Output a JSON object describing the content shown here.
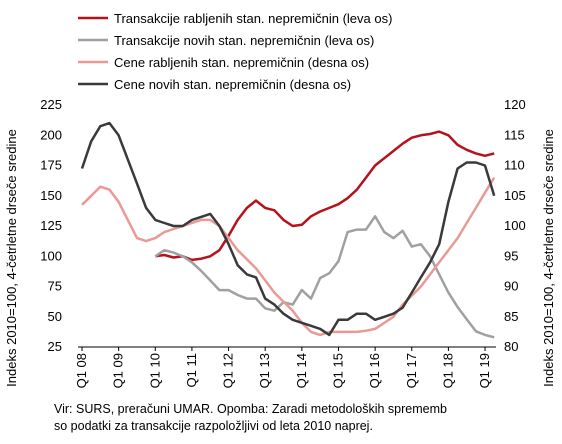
{
  "chart_data": {
    "type": "line",
    "categories": [
      "Q1 08",
      null,
      null,
      null,
      "Q1 09",
      null,
      null,
      null,
      "Q1 10",
      null,
      null,
      null,
      "Q1 11",
      null,
      null,
      null,
      "Q1 12",
      null,
      null,
      null,
      "Q1 13",
      null,
      null,
      null,
      "Q1 14",
      null,
      null,
      null,
      "Q1 15",
      null,
      null,
      null,
      "Q1 16",
      null,
      null,
      null,
      "Q1 17",
      null,
      null,
      null,
      "Q1 18",
      null,
      null,
      null,
      "Q1 19",
      null
    ],
    "series": [
      {
        "name": "Transakcije rabljenih stan. nepremičnin (leva os)",
        "color": "#b5121b",
        "axis": "y",
        "values": [
          null,
          null,
          null,
          null,
          null,
          null,
          null,
          null,
          100,
          101,
          99,
          100,
          97,
          98,
          100,
          105,
          117,
          130,
          140,
          146,
          140,
          138,
          130,
          125,
          126,
          133,
          137,
          140,
          143,
          148,
          155,
          165,
          175,
          181,
          187,
          193,
          198,
          200,
          201,
          203,
          200,
          192,
          188,
          185,
          183,
          185
        ]
      },
      {
        "name": "Transakcije novih stan. nepremičnin (leva os)",
        "color": "#a0a0a0",
        "axis": "y",
        "values": [
          null,
          null,
          null,
          null,
          null,
          null,
          null,
          null,
          100,
          105,
          103,
          100,
          95,
          88,
          80,
          72,
          72,
          68,
          65,
          65,
          57,
          55,
          62,
          60,
          72,
          65,
          82,
          86,
          96,
          120,
          122,
          122,
          133,
          120,
          115,
          121,
          108,
          110,
          100,
          85,
          70,
          58,
          48,
          38,
          35,
          33
        ]
      },
      {
        "name": "Cene rabljenih stan. nepremičnin (desna os)",
        "color": "#e89a94",
        "axis": "y2",
        "values": [
          103.5,
          105,
          106.5,
          106,
          104,
          101,
          98,
          97.5,
          98,
          99,
          99.5,
          100,
          100.5,
          101,
          101,
          100,
          98,
          96,
          94.5,
          93,
          91,
          89,
          87.5,
          86,
          84,
          82.5,
          82,
          82.5,
          82.5,
          82.5,
          82.5,
          82.7,
          83,
          84,
          85,
          87,
          88.5,
          90,
          92,
          94,
          96,
          98,
          100.5,
          103,
          105.5,
          108
        ]
      },
      {
        "name": "Cene novih stan. nepremičnin (desna os)",
        "color": "#3a3a3a",
        "axis": "y2",
        "values": [
          109.5,
          114,
          116.5,
          117,
          115,
          111,
          107,
          103,
          101,
          100.5,
          100,
          100,
          101,
          101.5,
          102,
          100,
          97,
          93.5,
          92,
          91.5,
          88,
          87,
          85.5,
          84.5,
          84,
          83.5,
          83,
          82,
          84.5,
          84.5,
          85.5,
          85.5,
          84.5,
          85,
          85.5,
          86.5,
          89,
          91.5,
          94,
          97,
          104,
          109.5,
          110.5,
          110.5,
          110,
          105
        ]
      }
    ],
    "y_label": "Indeks 2010=100, 4-četrletne drseče sredine",
    "y2_label": "Indeks 2010=100, 4-četrletne drseče sredine",
    "ylim": [
      25,
      225
    ],
    "yticks": [
      25,
      50,
      75,
      100,
      125,
      150,
      175,
      200,
      225
    ],
    "y2lim": [
      80,
      120
    ],
    "y2ticks": [
      80,
      85,
      90,
      95,
      100,
      105,
      110,
      115,
      120
    ],
    "note": [
      "Vir: SURS, preračuni UMAR. Opomba: Zaradi metodoloških sprememb",
      "so podatki za transakcije razpoložljivi od leta 2010 naprej."
    ],
    "grid": false
  }
}
